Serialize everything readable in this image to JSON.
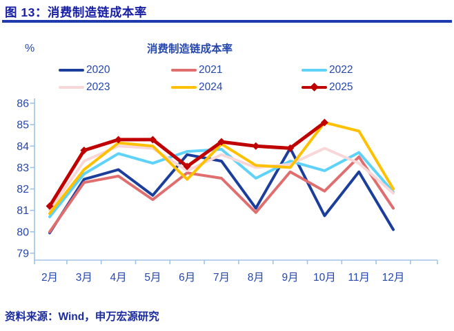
{
  "header": {
    "title": "图 13：消费制造链成本率"
  },
  "source": {
    "text": "资料来源：Wind，申万宏源研究"
  },
  "colors": {
    "title_blue": "#171ea6",
    "underline_blue": "#1f3aad",
    "text_blue": "#2446ad",
    "axis_light_blue": "#9dc3e6",
    "source_blue": "#1a2b9e"
  },
  "chart_data": {
    "type": "line",
    "title": "消费制造链成本率",
    "unit_label": "%",
    "xlabel": "",
    "ylabel": "%",
    "ylim": [
      79,
      86
    ],
    "y_tick_step": 1,
    "grid": "off",
    "legend_position": "top",
    "categories": [
      "2月",
      "3月",
      "4月",
      "5月",
      "6月",
      "7月",
      "8月",
      "9月",
      "10月",
      "11月",
      "12月"
    ],
    "series": [
      {
        "name": "2020",
        "color": "#1b3e9c",
        "marker": "none",
        "values": [
          79.95,
          82.45,
          82.9,
          81.7,
          83.6,
          83.3,
          81.1,
          83.9,
          80.75,
          82.8,
          80.1
        ]
      },
      {
        "name": "2021",
        "color": "#e06e6e",
        "marker": "none",
        "values": [
          80.0,
          82.3,
          82.6,
          81.5,
          82.75,
          82.5,
          80.9,
          82.8,
          81.9,
          83.5,
          81.1
        ]
      },
      {
        "name": "2022",
        "color": "#5ed2f8",
        "marker": "none",
        "values": [
          80.7,
          82.7,
          83.65,
          83.2,
          83.75,
          83.85,
          82.5,
          83.3,
          82.85,
          83.7,
          81.85
        ]
      },
      {
        "name": "2023",
        "color": "#f9d7d8",
        "marker": "none",
        "values": [
          81.0,
          83.3,
          84.0,
          83.9,
          82.85,
          83.6,
          83.0,
          83.15,
          83.9,
          83.2,
          81.8
        ]
      },
      {
        "name": "2024",
        "color": "#ffc000",
        "marker": "none",
        "values": [
          80.85,
          82.9,
          84.15,
          84.0,
          82.45,
          84.1,
          83.1,
          83.0,
          85.1,
          84.7,
          82.0
        ]
      },
      {
        "name": "2025",
        "color": "#c00000",
        "marker": "diamond",
        "values": [
          81.2,
          83.8,
          84.3,
          84.3,
          83.05,
          84.2,
          84.0,
          83.9,
          85.1
        ]
      }
    ]
  }
}
